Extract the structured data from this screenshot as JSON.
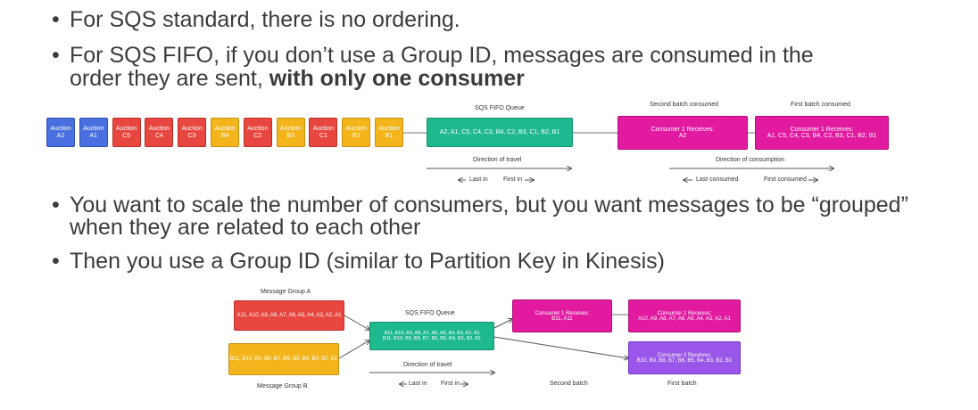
{
  "bullets": {
    "b1": "For SQS standard, there is no ordering.",
    "b2_line1": "For SQS FIFO, if you don’t use a Group ID, messages are consumed in the",
    "b2_line2_plain": "order they are sent,",
    "b2_line2_bold": " with only one consumer",
    "b3_line1": "You want to scale the number of consumers, but you want messages to be “grouped”",
    "b3_line2": "when they are related to each other",
    "b4": "Then you use a Group ID (similar to Partition Key in Kinesis)",
    "dot": "•"
  },
  "diagram1": {
    "messages": [
      {
        "label": "Auction A2",
        "color": "blue"
      },
      {
        "label": "Auction A1",
        "color": "blue"
      },
      {
        "label": "Auction C5",
        "color": "red"
      },
      {
        "label": "Auction C4",
        "color": "red"
      },
      {
        "label": "Auction C3",
        "color": "red"
      },
      {
        "label": "Auction B4",
        "color": "yellow"
      },
      {
        "label": "Auction C2",
        "color": "red"
      },
      {
        "label": "Auction B3",
        "color": "yellow"
      },
      {
        "label": "Auction C1",
        "color": "red"
      },
      {
        "label": "Auction B2",
        "color": "yellow"
      },
      {
        "label": "Auction B1",
        "color": "yellow"
      }
    ],
    "queue_title": "SQS FIFO Queue",
    "queue_content": "A2, A1, C5, C4, C3, B4, C2, B3, C1, B2, B1",
    "second_batch_title": "Second batch consumed",
    "first_batch_title": "First batch consumed",
    "consumer_second_line1": "Consumer 1 Receives:",
    "consumer_second_line2": "A2",
    "consumer_first_line1": "Consumer 1 Receives:",
    "consumer_first_line2": "A1, C5, C4, C3, B4, C2, B3, C1, B2, B1",
    "direction_travel": "Direction of travel",
    "last_in": "Last in",
    "first_in": "First in",
    "direction_consumption": "Direction of consumption",
    "last_consumed": "Last consumed",
    "first_consumed": "First consumed"
  },
  "diagram2": {
    "group_a_title": "Message Group A",
    "group_a_content": "A11, A10, A9, A8, A7, A6, A5, A4, A3, A2, A1",
    "group_b_title": "Message Group B",
    "group_b_content": "B11, B10, B9, B8, B7, B6, B5, B4, B3, B2, B1",
    "queue_title": "SQS FIFO Queue",
    "queue_line1": "A11, A10, A9, A8, A7, A6, A5, A4, A3, A2, A1",
    "queue_line2": "B11, B10, B9, B8, B7, B6, B5, B4, B3, B2, B1",
    "direction_travel": "Direction of travel",
    "last_in": "Last in",
    "first_in": "First in",
    "second_batch": "Second batch",
    "first_batch": "First batch",
    "c_second_line1": "Consumer 1 Receives:",
    "c_second_line2": "B11, A11",
    "c1_first_line1": "Consumer 1 Receives:",
    "c1_first_line2": "A10, A9, A8, A7, A6, A5, A4, A3, A2, A1",
    "c2_first_line1": "Consumer 2 Receives:",
    "c2_first_line2": "B10, B9, B8, B7, B6, B5, B4, B3, B2, B1"
  }
}
